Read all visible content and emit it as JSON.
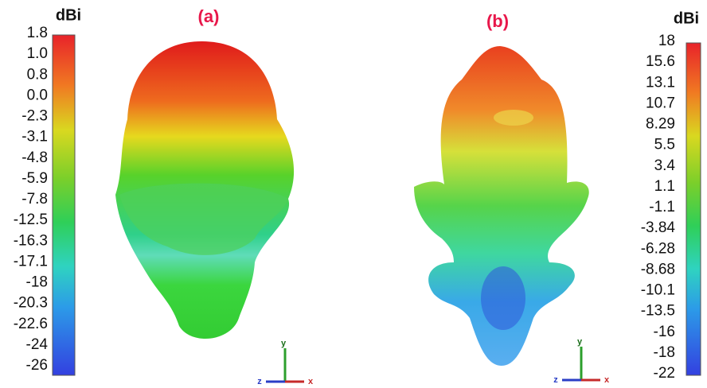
{
  "panels": [
    {
      "label": "(a)",
      "unit": "dBi",
      "scale": [
        "1.8",
        "1.0",
        "0.8",
        "0.0",
        "-2.3",
        "-3.1",
        "-4.8",
        "-5.9",
        "-7.8",
        "-12.5",
        "-16.3",
        "-17.1",
        "-18",
        "-20.3",
        "-22.6",
        "-24",
        "-26"
      ],
      "axes": {
        "y": "y",
        "z": "z",
        "x": "x"
      }
    },
    {
      "label": "(b)",
      "unit": "dBi",
      "scale": [
        "18",
        "15.6",
        "13.1",
        "10.7",
        "8.29",
        "5.5",
        "3.4",
        "1.1",
        "-1.1",
        "-3.84",
        "-6.28",
        "-8.68",
        "-10.1",
        "-13.5",
        "-16",
        "-18",
        "-22"
      ],
      "axes": {
        "y": "y",
        "z": "z",
        "x": "x"
      }
    }
  ]
}
